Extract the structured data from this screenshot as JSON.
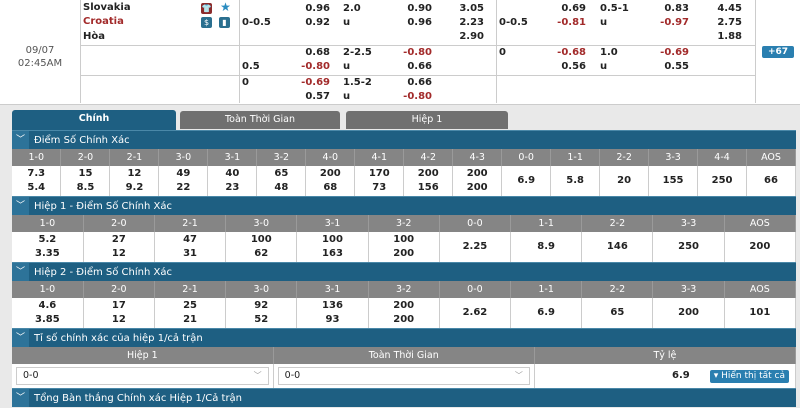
{
  "match": {
    "date": "09/07",
    "time": "02:45AM",
    "home": "Slovakia",
    "away": "Croatia",
    "draw": "Hòa",
    "more_button": "+67",
    "icons": [
      "jersey-icon",
      "star-icon",
      "dollar-icon",
      "stats-icon"
    ]
  },
  "odds_rows": [
    {
      "hdp1": [
        "",
        "0-0.5",
        ""
      ],
      "o1": [
        "0.96",
        "0.92",
        ""
      ],
      "ou1": [
        "2.0",
        "u",
        ""
      ],
      "o2": [
        "0.90",
        "0.96",
        ""
      ],
      "x1": [
        "3.05",
        "2.23",
        "2.90"
      ],
      "hdp2": [
        "",
        "0-0.5",
        ""
      ],
      "o3": [
        "0.69",
        "-0.81",
        ""
      ],
      "ou2": [
        "0.5-1",
        "u",
        ""
      ],
      "o4": [
        "0.83",
        "-0.97",
        ""
      ],
      "x2": [
        "4.45",
        "2.75",
        "1.88"
      ]
    },
    {
      "hdp1": [
        "",
        "0.5"
      ],
      "o1": [
        "0.68",
        "-0.80"
      ],
      "ou1": [
        "2-2.5",
        "u"
      ],
      "o2": [
        "-0.80",
        "0.66"
      ],
      "x1": [
        "",
        ""
      ],
      "hdp2": [
        "0",
        ""
      ],
      "o3": [
        "-0.68",
        "0.56"
      ],
      "ou2": [
        "1.0",
        "u"
      ],
      "o4": [
        "-0.69",
        "0.55"
      ],
      "x2": [
        "",
        ""
      ]
    },
    {
      "hdp1": [
        "0",
        ""
      ],
      "o1": [
        "-0.69",
        "0.57"
      ],
      "ou1": [
        "1.5-2",
        "u"
      ],
      "o2": [
        "0.66",
        "-0.80"
      ],
      "x1": [
        "",
        ""
      ],
      "hdp2": [
        "",
        ""
      ],
      "o3": [
        "",
        ""
      ],
      "ou2": [
        "",
        ""
      ],
      "o4": [
        "",
        ""
      ],
      "x2": [
        "",
        ""
      ]
    }
  ],
  "tabs": [
    {
      "label": "Chính",
      "active": true
    },
    {
      "label": "Toàn Thời Gian"
    },
    {
      "label": "Hiệp 1"
    }
  ],
  "correct_score": {
    "title": "Điểm Số Chính Xác",
    "headers": [
      "1-0",
      "2-0",
      "2-1",
      "3-0",
      "3-1",
      "3-2",
      "4-0",
      "4-1",
      "4-2",
      "4-3",
      "0-0",
      "1-1",
      "2-2",
      "3-3",
      "4-4",
      "AOS"
    ],
    "home": [
      "7.3",
      "15",
      "12",
      "49",
      "40",
      "65",
      "200",
      "170",
      "200",
      "200",
      "6.9",
      "5.8",
      "20",
      "155",
      "250",
      "66"
    ],
    "away": [
      "5.4",
      "8.5",
      "9.2",
      "22",
      "23",
      "48",
      "68",
      "73",
      "156",
      "200",
      "",
      "",
      "",
      "",
      "",
      ""
    ]
  },
  "ht1_score": {
    "title": "Hiệp 1 - Điểm Số Chính Xác",
    "headers": [
      "1-0",
      "2-0",
      "2-1",
      "3-0",
      "3-1",
      "3-2",
      "0-0",
      "1-1",
      "2-2",
      "3-3",
      "AOS"
    ],
    "home": [
      "5.2",
      "27",
      "47",
      "100",
      "100",
      "100",
      "2.25",
      "8.9",
      "146",
      "250",
      "200"
    ],
    "away": [
      "3.35",
      "12",
      "31",
      "62",
      "163",
      "200",
      "",
      "",
      "",
      "",
      ""
    ]
  },
  "ht2_score": {
    "title": "Hiệp 2 - Điểm Số Chính Xác",
    "headers": [
      "1-0",
      "2-0",
      "2-1",
      "3-0",
      "3-1",
      "3-2",
      "0-0",
      "1-1",
      "2-2",
      "3-3",
      "AOS"
    ],
    "home": [
      "4.6",
      "17",
      "25",
      "92",
      "136",
      "200",
      "2.62",
      "6.9",
      "65",
      "200",
      "101"
    ],
    "away": [
      "3.85",
      "12",
      "21",
      "52",
      "93",
      "200",
      "",
      "",
      "",
      "",
      ""
    ]
  },
  "htft": {
    "title": "Tỉ số chính xác của hiệp 1/cả trận",
    "headers": [
      "Hiệp 1",
      "Toàn Thời Gian",
      "Tỷ lệ"
    ],
    "ht_value": "0-0",
    "ft_value": "0-0",
    "odds": "6.9",
    "show_all": "▾ Hiển thị tất cả"
  },
  "total_goals": {
    "title": "Tổng Bàn thắng Chính xác Hiệp 1/Cả trận"
  },
  "colors": {
    "section": "#1e5f82",
    "negative": "#a22a2a",
    "header": "#858585"
  }
}
